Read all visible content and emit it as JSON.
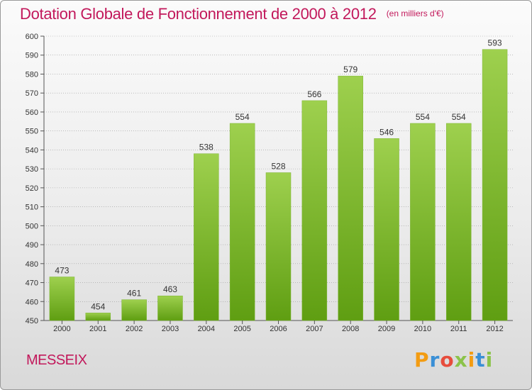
{
  "header": {
    "title": "Dotation Globale de Fonctionnement de 2000 à 2012",
    "subtitle": "(en milliers d'€)"
  },
  "footer": {
    "commune": "MESSEIX",
    "logo_text": "Proxiti"
  },
  "colors": {
    "title": "#c2185b",
    "bar_top": "#9ed04e",
    "bar_bottom": "#5f9e12",
    "grid": "#9a9a9a",
    "logo_letters": [
      "#f39c12",
      "#3a8fd6",
      "#e74c3c",
      "#8bc34a",
      "#f39c12",
      "#3a8fd6",
      "#8bc34a"
    ]
  },
  "chart_data": {
    "type": "bar",
    "title": "Dotation Globale de Fonctionnement de 2000 à 2012",
    "subtitle": "(en milliers d'€)",
    "categories": [
      "2000",
      "2001",
      "2002",
      "2003",
      "2004",
      "2005",
      "2006",
      "2007",
      "2008",
      "2009",
      "2010",
      "2011",
      "2012"
    ],
    "values": [
      473,
      454,
      461,
      463,
      538,
      554,
      528,
      566,
      579,
      546,
      554,
      554,
      593
    ],
    "ylim": [
      450,
      600
    ],
    "yticks": [
      450,
      460,
      470,
      480,
      490,
      500,
      510,
      520,
      530,
      540,
      550,
      560,
      570,
      580,
      590,
      600
    ],
    "grid": true,
    "legend": "none"
  }
}
